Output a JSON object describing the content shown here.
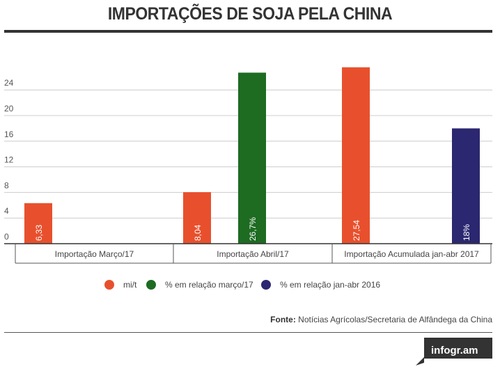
{
  "header": {
    "title": "IMPORTAÇÕES DE SOJA PELA CHINA"
  },
  "chart_data": {
    "type": "bar",
    "title": "IMPORTAÇÕES DE SOJA PELA CHINA",
    "categories": [
      "Importação Março/17",
      "Importação Abril/17",
      "Importação Acumulada jan-abr 2017"
    ],
    "y_ticks": [
      "0",
      "4",
      "8",
      "12",
      "16",
      "20",
      "24"
    ],
    "ylim": [
      0,
      28
    ],
    "grid": true,
    "series": [
      {
        "name": "mi/t",
        "color": "#e8502d",
        "values": [
          6.33,
          8.04,
          27.54
        ],
        "labels": [
          "6,33",
          "8,04",
          "27,54"
        ]
      },
      {
        "name": "% em relação março/17",
        "color": "#1e6b22",
        "values": [
          null,
          26.7,
          null
        ],
        "labels": [
          null,
          "26,7%",
          null
        ]
      },
      {
        "name": "% em relação jan-abr 2016",
        "color": "#2b2770",
        "values": [
          null,
          null,
          18
        ],
        "labels": [
          null,
          null,
          "18%"
        ]
      }
    ]
  },
  "legend": [
    {
      "label": "mi/t",
      "color": "#e8502d"
    },
    {
      "label": "% em relação março/17",
      "color": "#1e6b22"
    },
    {
      "label": "% em relação jan-abr 2016",
      "color": "#2b2770"
    }
  ],
  "source": {
    "prefix": "Fonte:",
    "text": "Notícias Agrícolas/Secretaria de Alfândega da China"
  },
  "brand": {
    "label": "infogr.am",
    "color": "#333333"
  }
}
